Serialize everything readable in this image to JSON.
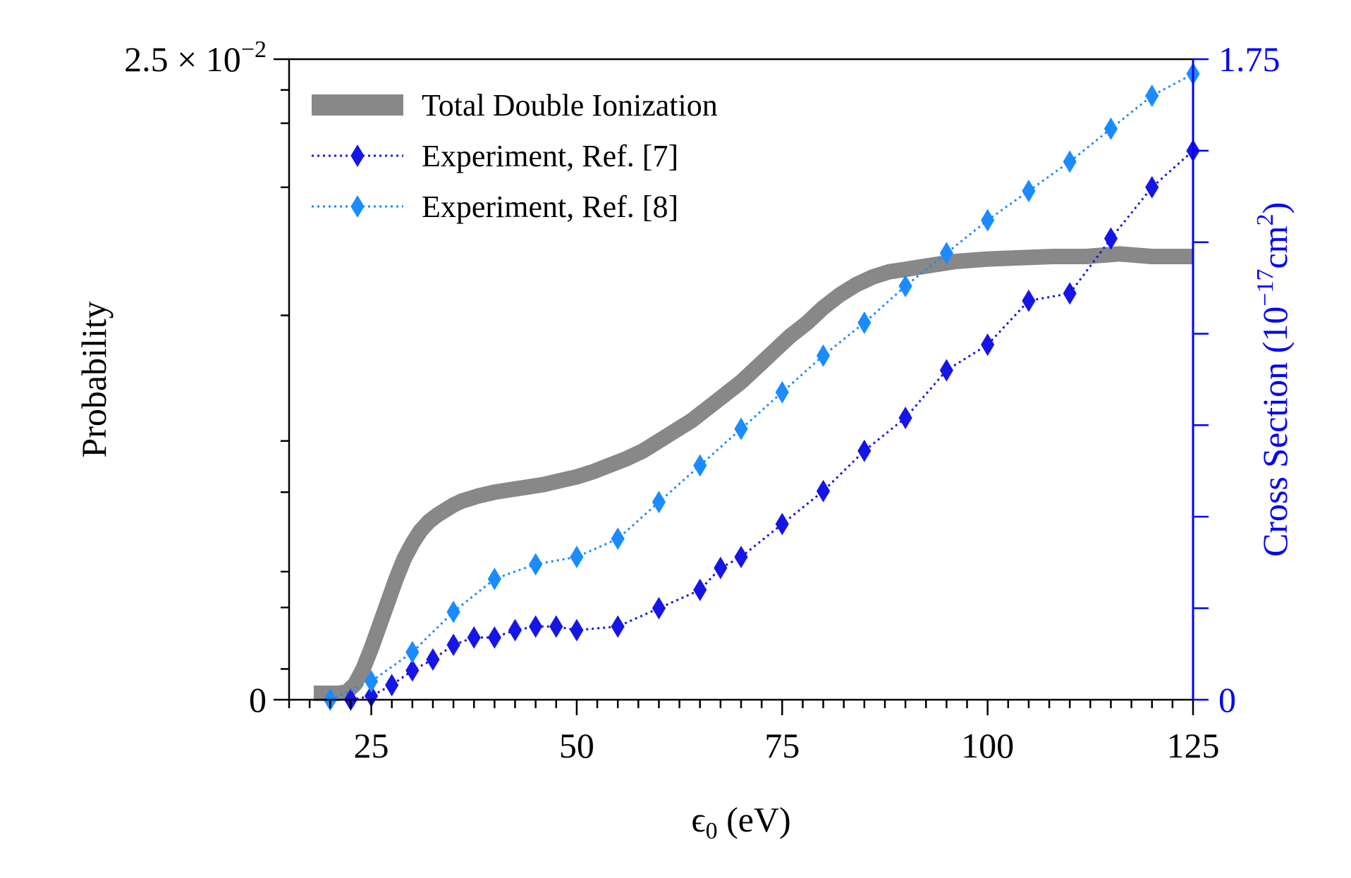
{
  "chart_data": {
    "type": "line",
    "xlabel_main": "ϵ",
    "xlabel_sub": "0",
    "xlabel_unit": " (eV)",
    "ylabel_left": "Probability",
    "ylabel_right_prefix": "Cross Section (10",
    "ylabel_right_exp": "−17",
    "ylabel_right_mid": "cm",
    "ylabel_right_exp2": "2",
    "ylabel_right_suffix": ")",
    "xlim": [
      15,
      125
    ],
    "ylim_left": [
      0,
      0.025
    ],
    "ylim_right": [
      0,
      1.75
    ],
    "x_ticks": [
      25,
      50,
      75,
      100,
      125
    ],
    "x_tick_labels": [
      "25",
      "50",
      "75",
      "100",
      "125"
    ],
    "left_tick_label_zero": "0",
    "left_tick_label_top_base": "2.5 × 10",
    "left_tick_label_top_exp": "−2",
    "right_tick_label_zero": "0",
    "right_tick_label_top": "1.75",
    "colors": {
      "total": "#888888",
      "exp7": "#1515e8",
      "exp8": "#1a8cff",
      "right_axis": "#0000ff"
    },
    "legend": [
      {
        "label": "Total Double Ionization"
      },
      {
        "label": "Experiment, Ref. [7]"
      },
      {
        "label": "Experiment, Ref. [8]"
      }
    ],
    "series": [
      {
        "name": "Total Double Ionization",
        "axis": "left",
        "x": [
          18,
          21,
          22,
          23,
          24,
          25,
          26,
          27,
          28,
          29,
          30,
          31,
          32,
          33,
          34,
          35,
          36,
          37,
          38,
          40,
          42,
          44,
          46,
          48,
          50,
          52,
          54,
          56,
          58,
          60,
          62,
          64,
          66,
          68,
          70,
          72,
          74,
          76,
          78,
          80,
          82,
          84,
          86,
          88,
          90,
          92,
          94,
          96,
          98,
          100,
          104,
          108,
          112,
          116,
          120,
          125
        ],
        "values": [
          0.00025,
          0.00025,
          0.0003,
          0.0006,
          0.0012,
          0.002,
          0.0029,
          0.0038,
          0.0047,
          0.0055,
          0.0061,
          0.0066,
          0.00695,
          0.0072,
          0.0074,
          0.0076,
          0.00775,
          0.00785,
          0.00795,
          0.0081,
          0.0082,
          0.0083,
          0.0084,
          0.00855,
          0.0087,
          0.0089,
          0.00915,
          0.0094,
          0.0097,
          0.0101,
          0.0105,
          0.0109,
          0.0114,
          0.0119,
          0.0124,
          0.013,
          0.0136,
          0.0142,
          0.0147,
          0.0153,
          0.0158,
          0.0162,
          0.0165,
          0.0167,
          0.0168,
          0.0169,
          0.017,
          0.0171,
          0.01715,
          0.0172,
          0.01725,
          0.0173,
          0.0173,
          0.0174,
          0.0173,
          0.0173
        ]
      },
      {
        "name": "Experiment, Ref. [7]",
        "axis": "right",
        "x": [
          22.5,
          25,
          27.5,
          30,
          32.5,
          35,
          37.5,
          40,
          42.5,
          45,
          47.5,
          50,
          55,
          60,
          65,
          67.5,
          70,
          75,
          80,
          85,
          90,
          95,
          100,
          105,
          110,
          115,
          120,
          125
        ],
        "values": [
          0.0,
          0.01,
          0.04,
          0.08,
          0.11,
          0.15,
          0.17,
          0.17,
          0.19,
          0.2,
          0.2,
          0.19,
          0.2,
          0.25,
          0.3,
          0.36,
          0.39,
          0.48,
          0.57,
          0.68,
          0.77,
          0.9,
          0.97,
          1.09,
          1.11,
          1.26,
          1.4,
          1.5
        ]
      },
      {
        "name": "Experiment, Ref. [8]",
        "axis": "right",
        "x": [
          20,
          25,
          30,
          35,
          40,
          45,
          50,
          55,
          60,
          65,
          70,
          75,
          80,
          85,
          90,
          95,
          100,
          105,
          110,
          115,
          120,
          125
        ],
        "values": [
          0.0,
          0.05,
          0.13,
          0.24,
          0.33,
          0.37,
          0.39,
          0.44,
          0.54,
          0.64,
          0.74,
          0.84,
          0.94,
          1.03,
          1.13,
          1.22,
          1.31,
          1.39,
          1.47,
          1.56,
          1.65,
          1.71
        ]
      }
    ]
  }
}
